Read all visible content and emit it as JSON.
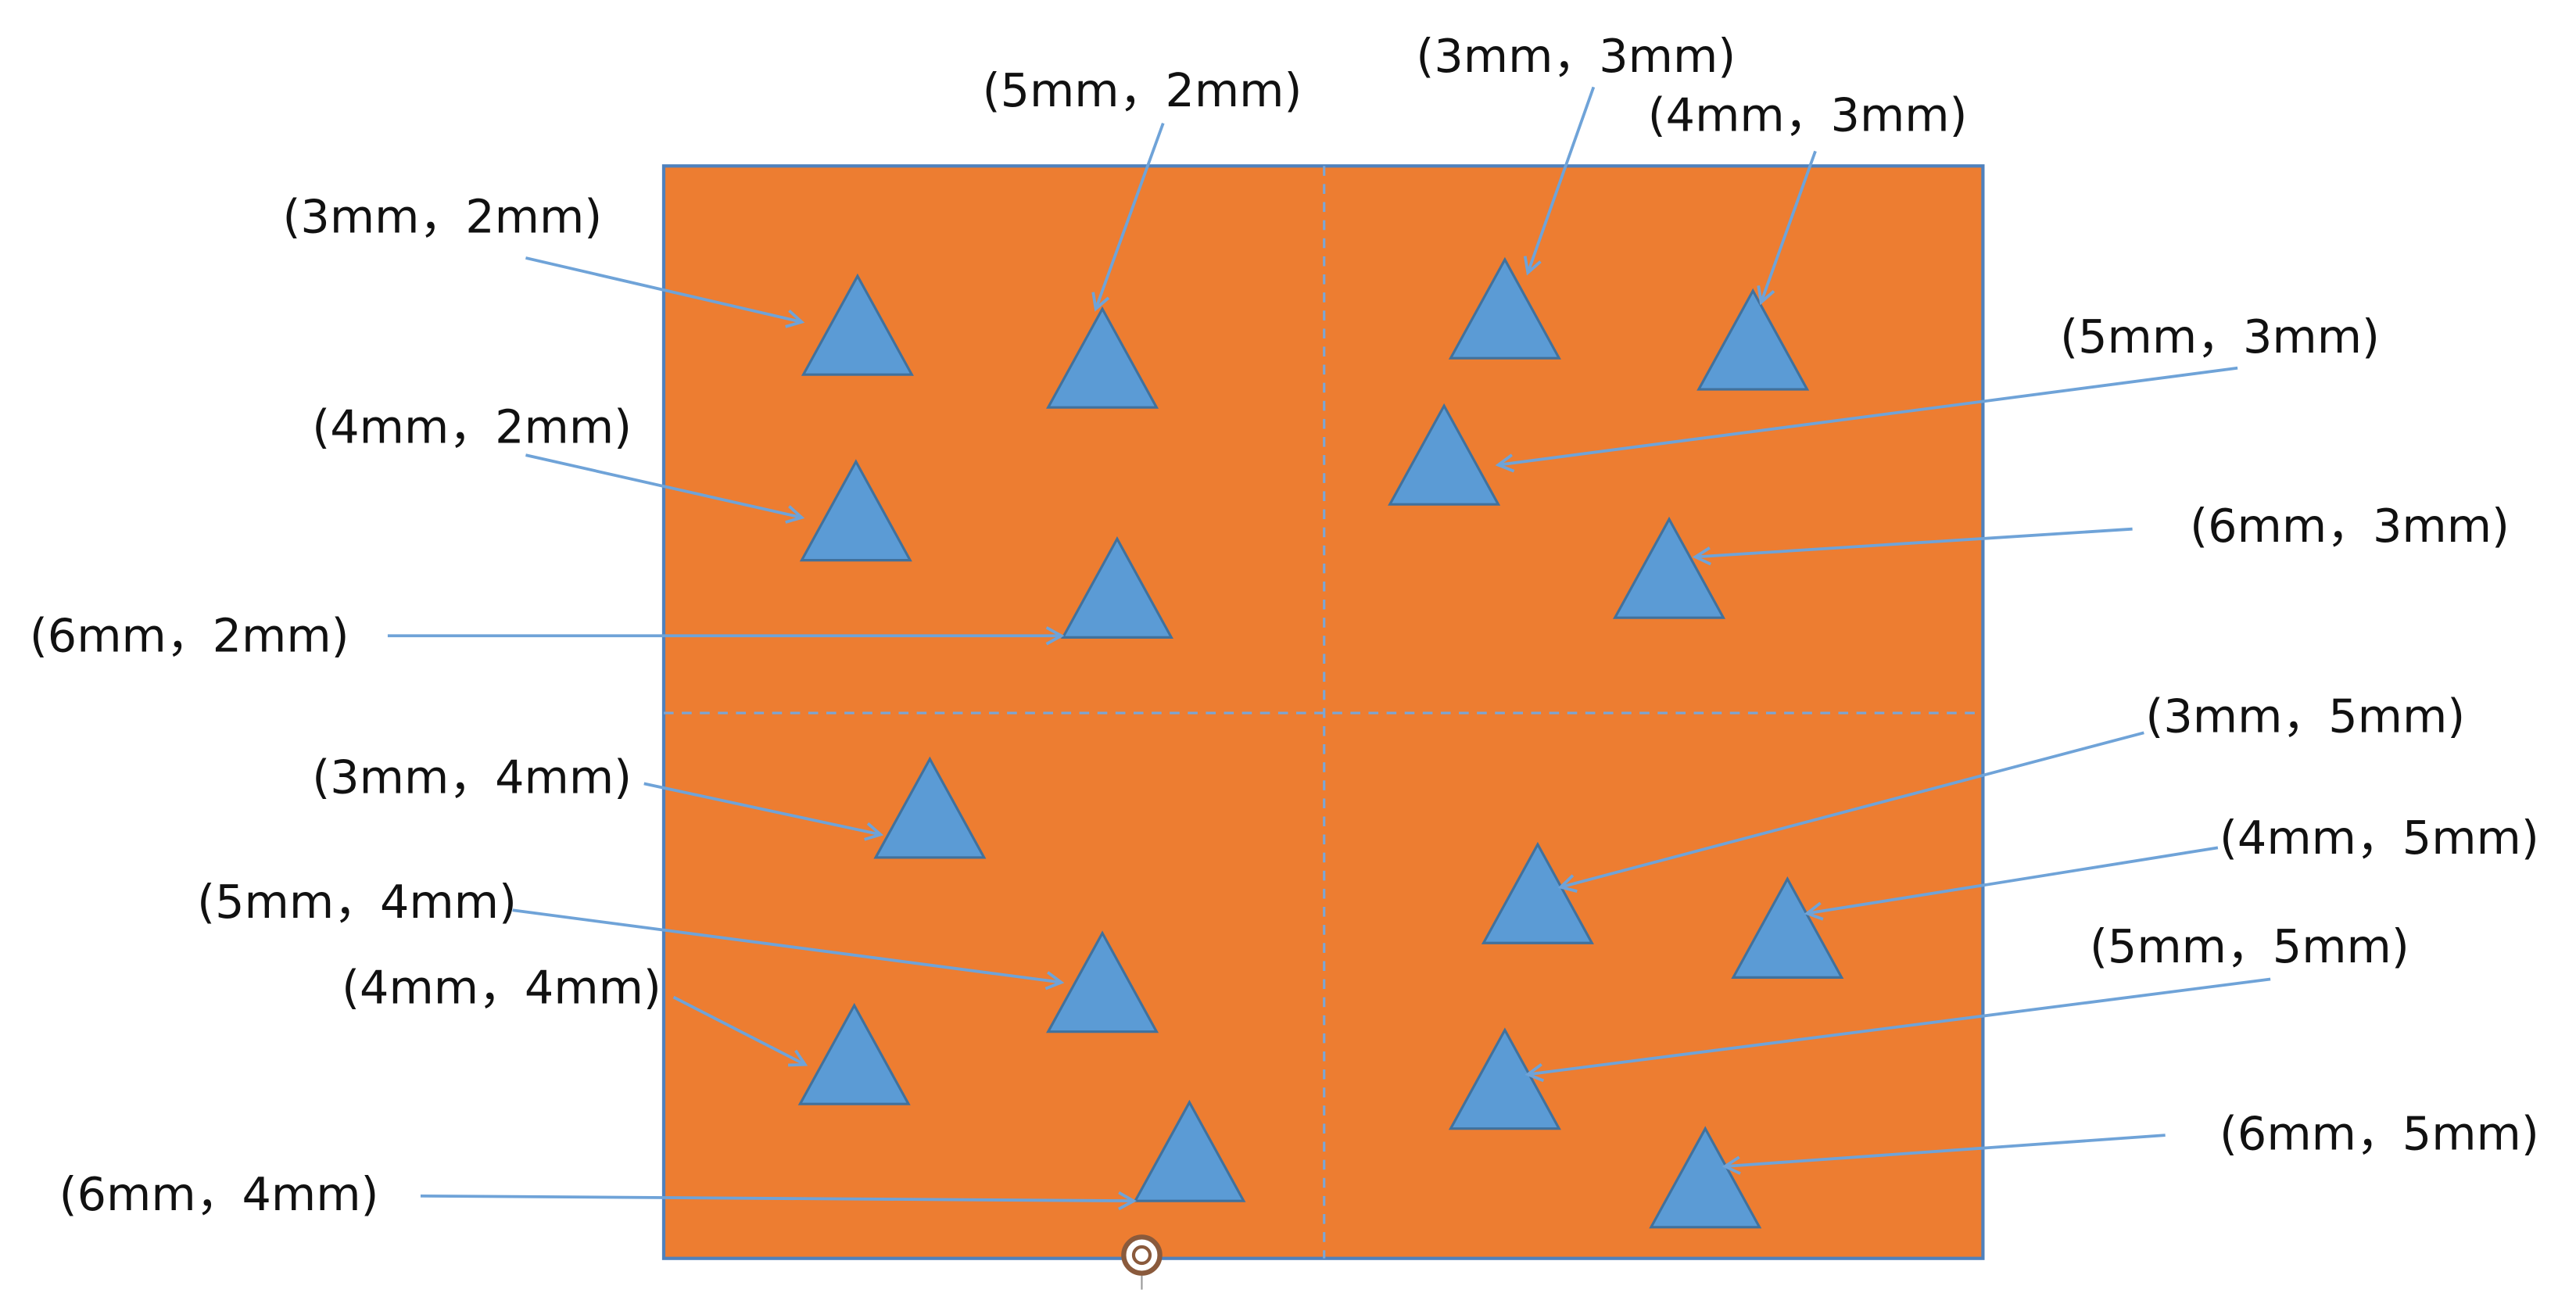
{
  "labels": [
    "(3mm，2mm)",
    "(5mm，2mm)",
    "(4mm，2mm)",
    "(6mm，2mm)",
    "(3mm，3mm)",
    "(4mm，3mm)",
    "(5mm，3mm)",
    "(6mm，3mm)",
    "(3mm，4mm)",
    "(5mm，4mm)",
    "(4mm，4mm)",
    "(6mm，4mm)",
    "(3mm，5mm)",
    "(4mm，5mm)",
    "(5mm，5mm)",
    "(6mm，5mm)"
  ]
}
